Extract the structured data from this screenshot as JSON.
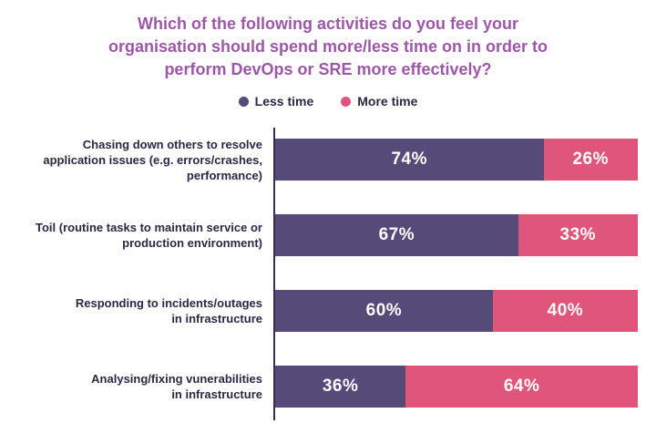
{
  "header": {
    "title_lines": [
      "Which of the following activities do you feel your",
      "organisation should spend more/less time on in order to",
      "perform DevOps or SRE more effectively?"
    ],
    "title_color": "#9c58a6"
  },
  "chart_data": {
    "type": "bar",
    "orientation": "horizontal",
    "stacked": true,
    "title": "Which of the following activities do you feel your organisation should spend more/less time on in order to perform DevOps or SRE more effectively?",
    "categories": [
      "Chasing down others to resolve\napplication issues (e.g. errors/crashes,\nperformance)",
      "Toil (routine tasks to maintain service or\nproduction environment)",
      "Responding to incidents/outages\nin infrastructure",
      "Analysing/fixing vunerabilities\nin infrastructure"
    ],
    "series": [
      {
        "name": "Less time",
        "color": "#564a78",
        "values": [
          74,
          67,
          60,
          36
        ]
      },
      {
        "name": "More time",
        "color": "#e0557a",
        "values": [
          26,
          33,
          40,
          64
        ]
      }
    ],
    "value_suffix": "%",
    "value_label_color": "#ffffff",
    "axis_line_color": "#352f52",
    "legend_position": "top",
    "grid": false,
    "xlim": [
      0,
      100
    ],
    "xlabel": "",
    "ylabel": ""
  }
}
